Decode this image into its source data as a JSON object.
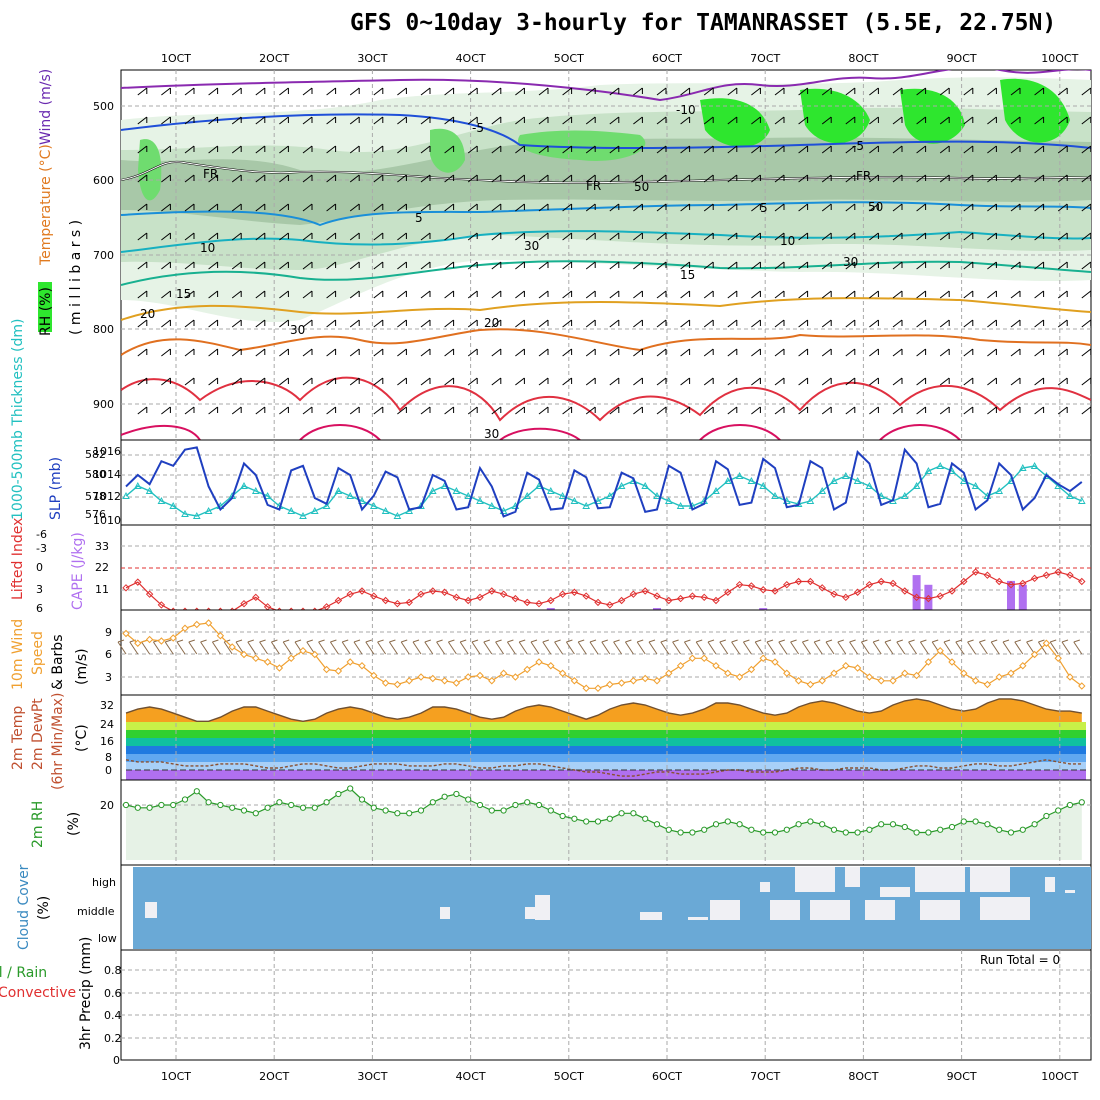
{
  "title": "GFS 0~10day 3-hourly for TAMANRASSET (5.5E, 22.75N)",
  "date_labels": [
    "1OCT",
    "2OCT",
    "3OCT",
    "4OCT",
    "5OCT",
    "6OCT",
    "7OCT",
    "8OCT",
    "9OCT",
    "10OCT"
  ],
  "colors": {
    "temp_contour_cold": "#1f4fd8",
    "temp_contour_warm": "#e0302a",
    "rh_green": "#2ee62e",
    "slp": "#1f3fc0",
    "thickness": "#22c0c0",
    "lifted_index": "#e03030",
    "cape": "#b070f0",
    "wind_speed": "#f0a030",
    "cloud_bg": "#6aa9d6",
    "rh2m": "#2a9a2a"
  },
  "panels": {
    "upper": {
      "label_rh": "RH (%)",
      "label_temp": "Temperature (°C)",
      "label_wind": "Wind (m/s)",
      "label_mb": "( m i l l i b a r s )",
      "ticks": [
        "500",
        "600",
        "700",
        "800",
        "900"
      ],
      "contour_labels": [
        {
          "text": "-10",
          "color": "#8a2ab0"
        },
        {
          "text": "-5",
          "color": "#1f4fd8"
        },
        {
          "text": "-5",
          "color": "#1f4fd8"
        },
        {
          "text": "FR",
          "color": "#000000"
        },
        {
          "text": "FR",
          "color": "#000000"
        },
        {
          "text": "FR",
          "color": "#000000"
        },
        {
          "text": "5",
          "color": "#1a8fd8"
        },
        {
          "text": "5",
          "color": "#1a8fd8"
        },
        {
          "text": "10",
          "color": "#17b0c0"
        },
        {
          "text": "10",
          "color": "#17b0c0"
        },
        {
          "text": "15",
          "color": "#18b090"
        },
        {
          "text": "15",
          "color": "#18b090"
        },
        {
          "text": "20",
          "color": "#e0a020"
        },
        {
          "text": "20",
          "color": "#e0a020"
        },
        {
          "text": "30",
          "color": "#e03040"
        },
        {
          "text": "30",
          "color": "#999999"
        },
        {
          "text": "30",
          "color": "#999999"
        },
        {
          "text": "30",
          "color": "#999999"
        },
        {
          "text": "50",
          "color": "#999999"
        },
        {
          "text": "50",
          "color": "#999999"
        }
      ]
    },
    "slp": {
      "label_thick": "1000-500mb Thickness (dm)",
      "label_slp": "SLP (mb)",
      "left_ticks": [
        "582",
        "580",
        "578",
        "576"
      ],
      "right_ticks": [
        "1016",
        "1014",
        "1012",
        "1010"
      ]
    },
    "li": {
      "label_li": "Lifted Index",
      "label_cape": "CAPE (J/kg)",
      "left_ticks": [
        "-6",
        "-3",
        "0",
        "3",
        "6"
      ],
      "right_ticks": [
        "33",
        "22",
        "11"
      ]
    },
    "wind10": {
      "label_1": "10m Wind",
      "label_2": "Speed",
      "label_3": "& Barbs",
      "label_unit": "(m/s)",
      "ticks": [
        "9",
        "6",
        "3"
      ]
    },
    "temp2m": {
      "label_1": "2m Temp",
      "label_2": "2m DewPt",
      "label_3": "(6hr Min/Max)",
      "label_unit": "(°C)",
      "ticks": [
        "32",
        "24",
        "16",
        "8",
        "0"
      ]
    },
    "rh2m": {
      "label": "2m RH",
      "unit": "(%)",
      "ticks": [
        "20"
      ]
    },
    "cloud": {
      "label": "Cloud Cover",
      "unit": "(%)",
      "levels": [
        "high",
        "middle",
        "low"
      ]
    },
    "precip": {
      "label_1": "Total / Rain",
      "label_2": "Convective",
      "label_3": "3hr Precip (mm)",
      "ticks": [
        "0.8",
        "0.6",
        "0.4",
        "0.2",
        "0"
      ],
      "run_total": "Run Total = 0"
    }
  },
  "chart_data": {
    "type": "line",
    "x_unit": "3-hourly steps from 1 Oct 00Z",
    "steps": 82,
    "slp_mb": [
      1013.0,
      1014.0,
      1013.2,
      1015.2,
      1014.8,
      1016.2,
      1016.4,
      1013.0,
      1011.0,
      1012.0,
      1015.0,
      1014.0,
      1011.4,
      1011.0,
      1014.4,
      1014.8,
      1012.0,
      1011.5,
      1014.6,
      1014.0,
      1011.0,
      1012.2,
      1014.3,
      1013.8,
      1011.0,
      1011.2,
      1014.0,
      1013.5,
      1011.0,
      1011.2,
      1014.6,
      1013.0,
      1010.4,
      1010.8,
      1014.2,
      1013.6,
      1011.0,
      1011.1,
      1014.4,
      1013.8,
      1011.1,
      1011.2,
      1014.2,
      1013.7,
      1010.8,
      1011.0,
      1014.8,
      1014.2,
      1011.0,
      1011.5,
      1015.2,
      1014.5,
      1011.4,
      1011.6,
      1015.4,
      1014.6,
      1011.2,
      1011.4,
      1015.2,
      1014.6,
      1011.0,
      1011.6,
      1016.0,
      1015.0,
      1011.4,
      1011.8,
      1016.2,
      1015.0,
      1011.2,
      1011.5,
      1015.0,
      1014.2,
      1011.0,
      1011.8,
      1015.0,
      1014.0,
      1011.0,
      1012.0,
      1014.0,
      1013.2,
      1012.6,
      1013.4
    ],
    "thickness_dm": [
      578.0,
      579.0,
      578.5,
      577.5,
      577.0,
      576.2,
      576.0,
      576.5,
      577.0,
      578.0,
      579.0,
      578.5,
      578.0,
      577.0,
      576.5,
      576.0,
      576.5,
      577.0,
      578.5,
      578.0,
      577.5,
      577.0,
      576.5,
      576.0,
      576.5,
      577.0,
      578.5,
      579.0,
      578.5,
      578.0,
      577.5,
      577.0,
      576.5,
      577.0,
      578.0,
      579.0,
      578.5,
      578.0,
      577.5,
      577.0,
      577.5,
      578.0,
      579.0,
      579.5,
      579.0,
      578.0,
      577.5,
      577.0,
      577.0,
      577.5,
      578.5,
      579.5,
      580.0,
      579.5,
      579.0,
      578.0,
      577.5,
      577.2,
      577.5,
      578.5,
      579.5,
      580.0,
      579.5,
      579.0,
      578.0,
      577.5,
      578.0,
      579.0,
      580.5,
      581.0,
      580.5,
      579.5,
      579.0,
      578.0,
      578.5,
      579.5,
      580.8,
      581.0,
      580.0,
      579.0,
      578.0,
      577.5
    ],
    "lifted_index": [
      2.5,
      1.6,
      3.5,
      5.2,
      7.0,
      7.5,
      7.8,
      8.0,
      7.5,
      6.5,
      5.0,
      4.0,
      5.5,
      6.5,
      6.8,
      7.0,
      6.5,
      5.5,
      4.5,
      3.5,
      3.0,
      3.8,
      4.5,
      5.0,
      4.8,
      3.5,
      3.0,
      3.2,
      4.0,
      4.5,
      4.0,
      3.0,
      3.5,
      4.2,
      4.8,
      5.0,
      4.5,
      3.5,
      3.2,
      3.8,
      4.8,
      5.2,
      4.5,
      3.5,
      3.0,
      3.8,
      4.5,
      4.2,
      3.8,
      4.0,
      4.5,
      3.2,
      2.0,
      2.2,
      2.8,
      3.0,
      2.0,
      1.5,
      1.5,
      2.5,
      3.5,
      4.0,
      3.2,
      2.0,
      1.5,
      1.8,
      3.0,
      4.0,
      4.2,
      3.8,
      3.0,
      1.5,
      0.0,
      0.5,
      1.5,
      2.0,
      1.8,
      1.0,
      0.5,
      0.0,
      0.5,
      1.5
    ],
    "cape_jkg": [
      0,
      0,
      0,
      0,
      0,
      0,
      0,
      0,
      0,
      0,
      0,
      0,
      0,
      0,
      0,
      0,
      0,
      0,
      0,
      0,
      0,
      0,
      0,
      0,
      0,
      0,
      0,
      0,
      0,
      0,
      0,
      0,
      0,
      0,
      0,
      0,
      1,
      0,
      0,
      0,
      0,
      0,
      0,
      0,
      0,
      1,
      0,
      0,
      0,
      0,
      0,
      0,
      0,
      0,
      1,
      0,
      0,
      0,
      0,
      0,
      0,
      0,
      0,
      0,
      0,
      0,
      0,
      18,
      13,
      0,
      0,
      0,
      0,
      0,
      0,
      15,
      13,
      0,
      0,
      0,
      0,
      0
    ],
    "wind10m_speed": [
      8.8,
      7.5,
      8.0,
      7.8,
      8.2,
      9.5,
      10.0,
      10.8,
      8.5,
      7.0,
      6.0,
      5.5,
      5.0,
      4.2,
      5.5,
      6.5,
      6.0,
      4.0,
      3.8,
      5.0,
      4.5,
      3.2,
      2.2,
      2.0,
      2.5,
      3.0,
      2.8,
      2.5,
      2.2,
      3.0,
      3.2,
      2.5,
      3.5,
      3.0,
      4.0,
      5.0,
      4.5,
      3.5,
      2.5,
      1.5,
      1.5,
      2.0,
      2.2,
      2.5,
      2.8,
      2.5,
      3.5,
      4.5,
      5.5,
      5.5,
      4.5,
      3.5,
      3.0,
      4.0,
      5.5,
      5.0,
      3.5,
      2.5,
      2.0,
      2.5,
      3.5,
      4.5,
      4.2,
      3.0,
      2.5,
      2.5,
      3.5,
      3.2,
      5.0,
      6.5,
      5.0,
      3.5,
      2.5,
      2.0,
      3.0,
      3.5,
      4.5,
      6.0,
      7.5,
      5.5,
      3.0,
      1.8
    ],
    "temp2m_c": [
      28,
      30,
      31,
      30,
      28,
      26,
      24,
      24,
      26,
      29,
      31,
      31,
      29,
      27,
      25,
      24,
      25,
      28,
      30,
      31,
      30,
      28,
      26,
      25,
      26,
      28,
      31,
      31,
      30,
      28,
      26,
      25,
      26,
      29,
      31,
      32,
      31,
      29,
      27,
      25,
      27,
      30,
      32,
      33,
      32,
      30,
      28,
      27,
      28,
      30,
      33,
      33,
      32,
      30,
      28,
      27,
      28,
      31,
      33,
      34,
      33,
      31,
      29,
      28,
      29,
      32,
      34,
      35,
      34,
      32,
      30,
      29,
      30,
      33,
      35,
      35,
      34,
      32,
      30,
      29,
      29,
      28
    ],
    "dewpt2m_c": [
      5,
      4,
      4,
      4,
      3,
      2,
      2,
      2,
      3,
      3,
      3,
      2,
      1,
      1,
      2,
      3,
      3,
      2,
      1,
      1,
      2,
      3,
      3,
      3,
      2,
      2,
      2,
      3,
      3,
      2,
      1,
      1,
      2,
      2,
      3,
      3,
      2,
      1,
      0,
      -1,
      -1,
      -2,
      -3,
      -3,
      -2,
      -1,
      -1,
      -2,
      -2,
      -2,
      -1,
      0,
      0,
      -1,
      -1,
      -1,
      0,
      1,
      1,
      0,
      0,
      1,
      1,
      1,
      0,
      0,
      1,
      2,
      2,
      1,
      1,
      2,
      3,
      3,
      2,
      2,
      3,
      4,
      5,
      4,
      3,
      3
    ],
    "rh2m_pct": [
      20,
      19,
      19,
      20,
      20,
      22,
      25,
      21,
      20,
      19,
      18,
      17,
      19,
      21,
      20,
      19,
      19,
      21,
      24,
      26,
      22,
      19,
      18,
      17,
      17,
      18,
      21,
      23,
      24,
      22,
      20,
      18,
      18,
      20,
      21,
      20,
      18,
      16,
      15,
      14,
      14,
      15,
      17,
      17,
      15,
      13,
      11,
      10,
      10,
      11,
      13,
      14,
      13,
      11,
      10,
      10,
      11,
      13,
      14,
      13,
      11,
      10,
      10,
      11,
      13,
      13,
      12,
      10,
      10,
      11,
      12,
      14,
      14,
      13,
      11,
      10,
      11,
      13,
      16,
      18,
      20,
      21
    ]
  }
}
